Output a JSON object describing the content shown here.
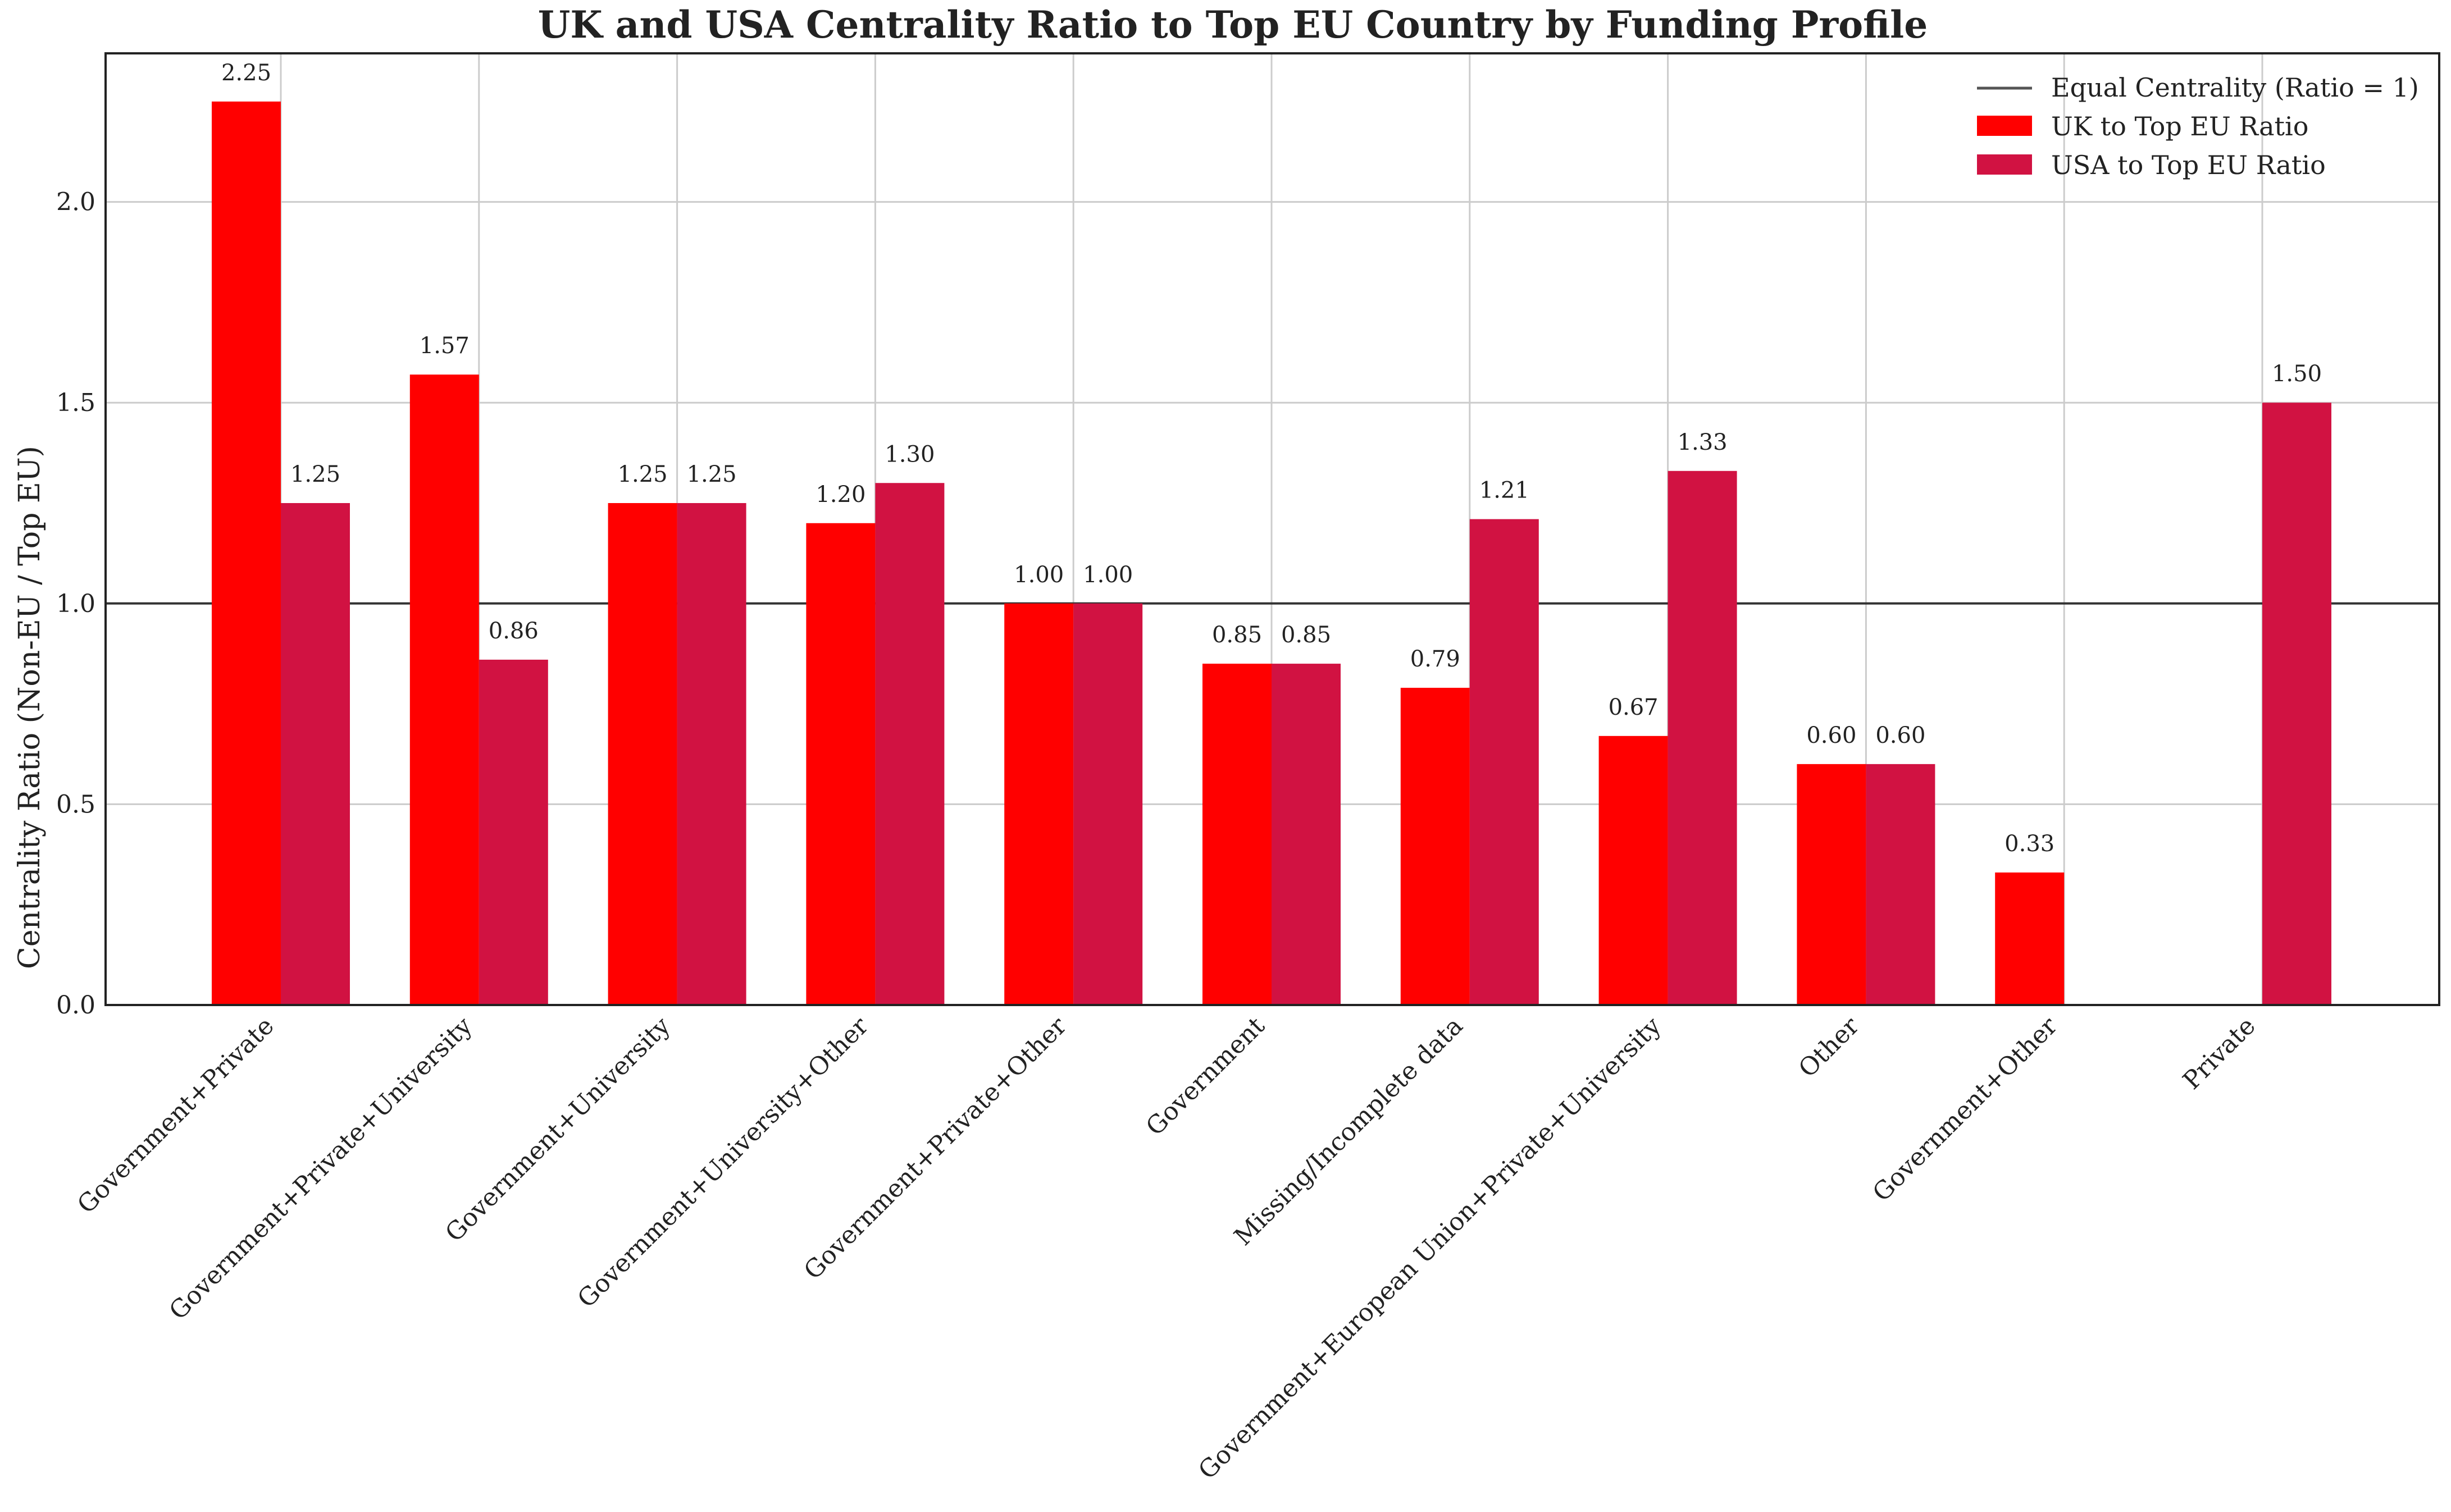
{
  "chart_data": {
    "type": "bar",
    "title": "UK and USA Centrality Ratio to Top EU Country by Funding Profile",
    "xlabel": "",
    "ylabel": "Centrality Ratio (Non-EU / Top EU)",
    "ylim": [
      0,
      2.37
    ],
    "yticks": [
      0.0,
      0.5,
      1.0,
      1.5,
      2.0
    ],
    "ytick_labels": [
      "0.0",
      "0.5",
      "1.0",
      "1.5",
      "2.0"
    ],
    "grid": true,
    "legend_position": "top-right",
    "categories": [
      "Government+Private",
      "Government+Private+University",
      "Government+University",
      "Government+University+Other",
      "Government+Private+Other",
      "Government",
      "Missing/Incomplete data",
      "Government+European Union+Private+University",
      "Other",
      "Government+Other",
      "Private"
    ],
    "series": [
      {
        "name": "UK to Top EU Ratio",
        "color": "#ff0000",
        "values": [
          2.25,
          1.57,
          1.25,
          1.2,
          1.0,
          0.85,
          0.79,
          0.67,
          0.6,
          0.33,
          null
        ],
        "labels": [
          "2.25",
          "1.57",
          "1.25",
          "1.20",
          "1.00",
          "0.85",
          "0.79",
          "0.67",
          "0.60",
          "0.33",
          ""
        ]
      },
      {
        "name": "USA to Top EU Ratio",
        "color": "#d11242",
        "values": [
          1.25,
          0.86,
          1.25,
          1.3,
          1.0,
          0.85,
          1.21,
          1.33,
          0.6,
          null,
          1.5
        ],
        "labels": [
          "1.25",
          "0.86",
          "1.25",
          "1.30",
          "1.00",
          "0.85",
          "1.21",
          "1.33",
          "0.60",
          "",
          "1.50"
        ]
      }
    ],
    "reference_line": {
      "name": "Equal Centrality (Ratio = 1)",
      "value": 1.0,
      "color": "#555555"
    }
  }
}
